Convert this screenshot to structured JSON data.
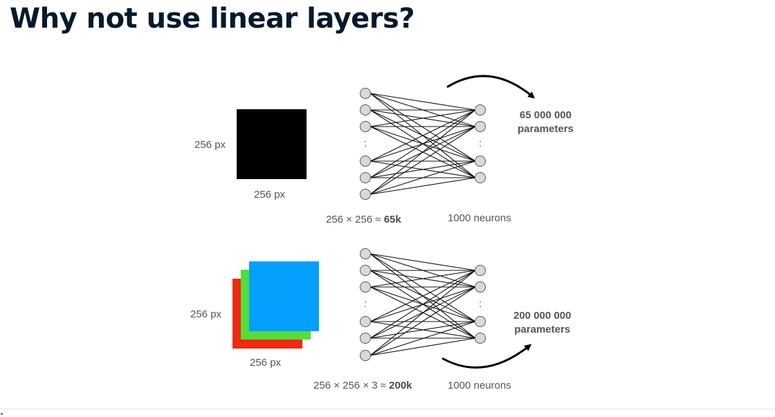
{
  "title": "Why not use linear layers?",
  "grayscale_example": {
    "height_label": "256 px",
    "width_label": "256 px",
    "input_formula_prefix": "256 × 256 ≈ ",
    "input_formula_bold": "65k",
    "output_label": "1000 neurons",
    "params_line1": "65 000 000",
    "params_line2": "parameters",
    "dots": ":"
  },
  "rgb_example": {
    "height_label": "256 px",
    "width_label": "256 px",
    "input_formula_prefix": "256 × 256 × 3 ≈ ",
    "input_formula_bold": "200k",
    "output_label": "1000 neurons",
    "params_line1": "200 000 000",
    "params_line2": "parameters",
    "dots": ":"
  },
  "colors": {
    "title": "#05192d",
    "gray_image": "#000000",
    "red_channel": "#ee2a10",
    "green_channel": "#52dd3b",
    "blue_channel": "#03a0fe",
    "neuron_fill": "#d9d9d9",
    "neuron_stroke": "#555555"
  }
}
